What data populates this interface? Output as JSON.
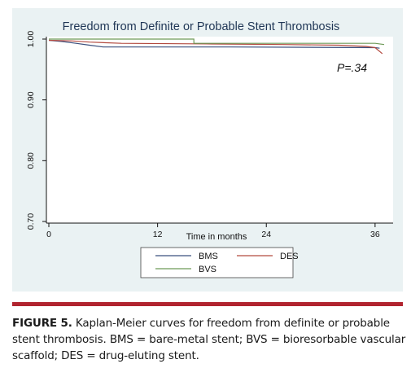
{
  "chart_data": {
    "type": "line",
    "title": "Freedom from Definite or Probable Stent Thrombosis",
    "xlabel": "Time in months",
    "ylabel": "",
    "xlim": [
      0,
      37
    ],
    "ylim": [
      0.7,
      1.0
    ],
    "xticks": [
      "0",
      "12",
      "24",
      "36"
    ],
    "yticks": [
      "0.70",
      "0.80",
      "0.90",
      "1.00"
    ],
    "grid": false,
    "legend_position": "bottom",
    "annotation": "P=.34",
    "series": [
      {
        "name": "BMS",
        "color": "#3b4f7d",
        "x": [
          0,
          1.5,
          3,
          4.5,
          6,
          20,
          36,
          36.5
        ],
        "y": [
          0.998,
          0.996,
          0.993,
          0.99,
          0.987,
          0.987,
          0.986,
          0.985
        ]
      },
      {
        "name": "DES",
        "color": "#b34a3f",
        "x": [
          0,
          2.5,
          4.5,
          8,
          18,
          26,
          32,
          35,
          36,
          36.8
        ],
        "y": [
          0.998,
          0.997,
          0.995,
          0.993,
          0.992,
          0.991,
          0.99,
          0.988,
          0.986,
          0.976
        ]
      },
      {
        "name": "BVS",
        "color": "#6e9a58",
        "x": [
          0,
          16,
          16,
          36,
          37
        ],
        "y": [
          1.0,
          1.0,
          0.993,
          0.993,
          0.991
        ]
      }
    ]
  },
  "caption": {
    "label": "FIGURE 5.",
    "text": " Kaplan-Meier curves for freedom from definite or probable stent thrombosis. BMS = bare-metal stent; BVS = bioresorbable vascular scaffold; DES = drug-eluting stent."
  },
  "colors": {
    "panel_background": "#eaf2f3",
    "rule": "#b1242f"
  }
}
